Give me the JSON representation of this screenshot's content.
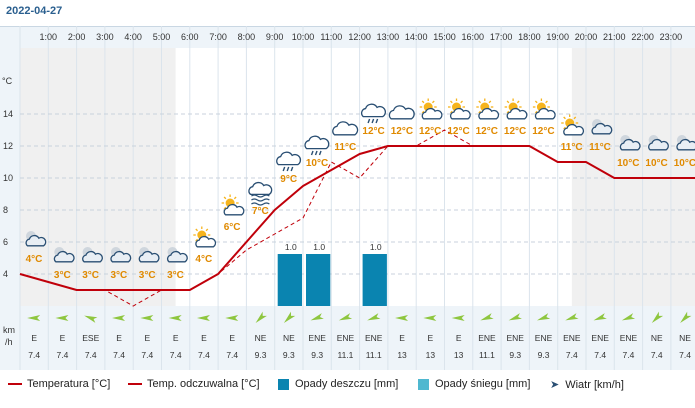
{
  "header": {
    "date": "2022-04-27"
  },
  "units": {
    "temp": "°C",
    "wind_top": "km",
    "wind_bottom": "/h"
  },
  "chart_data": {
    "type": "line",
    "x": [
      "1:00",
      "2:00",
      "3:00",
      "4:00",
      "5:00",
      "6:00",
      "7:00",
      "8:00",
      "9:00",
      "10:00",
      "11:00",
      "12:00",
      "13:00",
      "14:00",
      "15:00",
      "16:00",
      "17:00",
      "18:00",
      "19:00",
      "20:00",
      "21:00",
      "22:00",
      "23:00"
    ],
    "y_ticks": [
      4,
      6,
      8,
      10,
      12,
      14
    ],
    "ylim": [
      2,
      15.5
    ],
    "series": [
      {
        "name": "Temperatura [°C]",
        "style": "solid",
        "color": "#c0000a",
        "values": [
          3.5,
          3,
          3,
          3,
          3,
          3,
          4,
          6,
          8,
          9.5,
          10.5,
          11.5,
          12,
          12,
          12,
          12,
          12,
          12,
          11,
          11,
          10,
          10,
          10
        ]
      },
      {
        "name": "Temp. odczuwalna [°C]",
        "style": "dashed",
        "color": "#c0000a",
        "values": [
          3.5,
          3,
          3,
          2,
          3,
          3,
          4,
          5.5,
          6.5,
          7.5,
          11,
          10,
          12,
          12,
          13,
          12,
          12,
          12,
          11,
          11,
          10,
          10,
          10
        ]
      }
    ],
    "temp_labels": [
      "4°C",
      "3°C",
      "3°C",
      "3°C",
      "3°C",
      "3°C",
      "4°C",
      "6°C",
      "7°C",
      "9°C",
      "10°C",
      "11°C",
      "12°C",
      "12°C",
      "12°C",
      "12°C",
      "12°C",
      "12°C",
      "12°C",
      "11°C",
      "11°C",
      "10°C",
      "10°C",
      "10°C"
    ],
    "weather_icons": [
      "moon-cloud-icon",
      "moon-cloud-icon",
      "moon-cloud-icon",
      "moon-cloud-icon",
      "moon-cloud-icon",
      "moon-cloud-icon",
      "sun-cloud-icon",
      "sun-cloud-icon",
      "fog-icon",
      "rain-icon",
      "rain-icon",
      "cloud-icon",
      "rain-icon",
      "cloud-icon",
      "sun-cloud-icon",
      "sun-cloud-icon",
      "sun-cloud-icon",
      "sun-cloud-icon",
      "sun-cloud-icon",
      "sun-cloud-icon",
      "moon-cloud-icon",
      "moon-cloud-icon",
      "moon-cloud-icon",
      "moon-cloud-icon"
    ],
    "rain": [
      {
        "index": 9,
        "value": 1.0,
        "label": "1.0"
      },
      {
        "index": 10,
        "value": 1.0,
        "label": "1.0"
      },
      {
        "index": 12,
        "value": 1.0,
        "label": "1.0"
      }
    ],
    "wind_dir": [
      "E",
      "E",
      "ESE",
      "E",
      "E",
      "E",
      "E",
      "E",
      "NE",
      "NE",
      "ENE",
      "ENE",
      "ENE",
      "E",
      "E",
      "E",
      "ENE",
      "ENE",
      "ENE",
      "ENE",
      "ENE",
      "ENE",
      "NE",
      "NE"
    ],
    "wind_speed": [
      "7.4",
      "7.4",
      "7.4",
      "7.4",
      "7.4",
      "7.4",
      "7.4",
      "7.4",
      "9.3",
      "9.3",
      "9.3",
      "11.1",
      "11.1",
      "13",
      "13",
      "13",
      "11.1",
      "9.3",
      "9.3",
      "7.4",
      "7.4",
      "7.4",
      "7.4",
      "7.4"
    ],
    "colors": {
      "rain": "#0a84b0",
      "snow": "#4fb8d0",
      "temp": "#c0000a",
      "label": "#e08a00",
      "night": "#f0f0f0",
      "wind": "#8ec63f"
    }
  },
  "legend": {
    "temp": "Temperatura [°C]",
    "feels": "Temp. odczuwalna [°C]",
    "rain": "Opady deszczu [mm]",
    "snow": "Opady śniegu [mm]",
    "wind": "Wiatr [km/h]"
  }
}
